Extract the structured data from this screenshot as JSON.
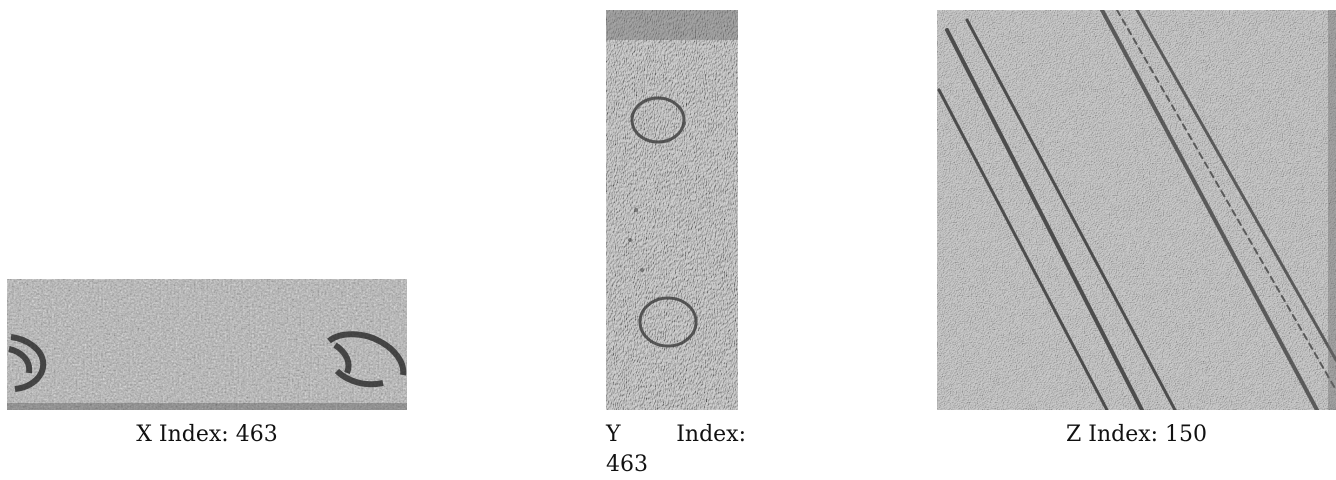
{
  "panels": {
    "x": {
      "axis_letter": "X",
      "index_word": "Index:",
      "index_value": "463",
      "caption": "X Index: 463"
    },
    "y": {
      "axis_letter": "Y",
      "index_word": "Index:",
      "index_value": "463",
      "caption": "Y Index: 463"
    },
    "z": {
      "axis_letter": "Z",
      "index_word": "Index:",
      "index_value": "150",
      "caption": "Z Index: 150"
    }
  },
  "colors": {
    "background": "#ffffff",
    "slice_gray": "#9a9a9a",
    "x_slice_base": "#b0b0b0",
    "dark_feature": "#2a2a2a"
  }
}
